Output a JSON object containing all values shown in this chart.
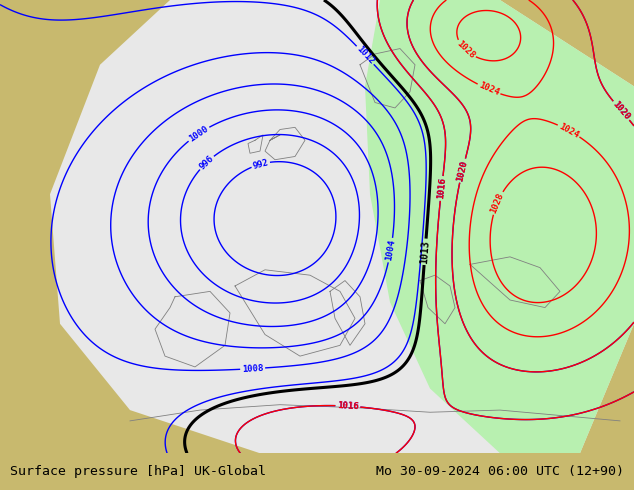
{
  "title_left": "Surface pressure [hPa] UK-Global",
  "title_right": "Mo 30-09-2024 06:00 UTC (12+90)",
  "title_fontsize": 9.5,
  "title_color": "#000000",
  "land_color": "#c8b96e",
  "sea_color": "#e8e8e8",
  "green_color": "#b8f0b0",
  "footer_bg": "#c8c8c8",
  "fig_width": 6.34,
  "fig_height": 4.9,
  "dpi": 100
}
